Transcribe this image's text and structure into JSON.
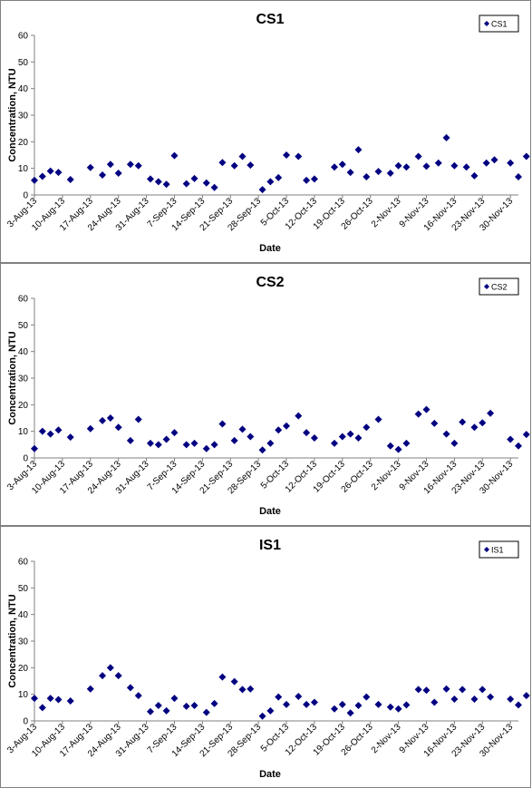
{
  "chart_data": [
    {
      "type": "scatter",
      "title": "CS1",
      "xlabel": "Date",
      "ylabel": "Concentration, NTU",
      "ylim": [
        0,
        60
      ],
      "yticks": [
        0,
        10,
        20,
        30,
        40,
        50,
        60
      ],
      "xticks": [
        "3-Aug-13",
        "10-Aug-13",
        "17-Aug-13",
        "24-Aug-13",
        "31-Aug-13",
        "7-Sep-13",
        "14-Sep-13",
        "21-Sep-13",
        "28-Sep-13",
        "5-Oct-13",
        "12-Oct-13",
        "19-Oct-13",
        "26-Oct-13",
        "2-Nov-13",
        "9-Nov-13",
        "16-Nov-13",
        "23-Nov-13",
        "30-Nov-13"
      ],
      "xlim": [
        "2013-08-03",
        "2013-12-02"
      ],
      "grid": false,
      "legend": "top-right",
      "marker_color": "#000080",
      "series": [
        {
          "name": "CS1",
          "points": [
            [
              "2013-08-03",
              5.5
            ],
            [
              "2013-08-05",
              7
            ],
            [
              "2013-08-07",
              9
            ],
            [
              "2013-08-09",
              8.5
            ],
            [
              "2013-08-12",
              5.8
            ],
            [
              "2013-08-17",
              10.3
            ],
            [
              "2013-08-20",
              7.5
            ],
            [
              "2013-08-22",
              11.5
            ],
            [
              "2013-08-24",
              8.2
            ],
            [
              "2013-08-27",
              11.5
            ],
            [
              "2013-08-29",
              11
            ],
            [
              "2013-09-01",
              6
            ],
            [
              "2013-09-03",
              5
            ],
            [
              "2013-09-05",
              4
            ],
            [
              "2013-09-07",
              14.8
            ],
            [
              "2013-09-10",
              4.2
            ],
            [
              "2013-09-12",
              6.2
            ],
            [
              "2013-09-15",
              4.5
            ],
            [
              "2013-09-17",
              2.8
            ],
            [
              "2013-09-19",
              12.2
            ],
            [
              "2013-09-22",
              11
            ],
            [
              "2013-09-24",
              14.5
            ],
            [
              "2013-09-26",
              11.2
            ],
            [
              "2013-09-29",
              2
            ],
            [
              "2013-10-01",
              5
            ],
            [
              "2013-10-03",
              6.5
            ],
            [
              "2013-10-05",
              15
            ],
            [
              "2013-10-08",
              14.5
            ],
            [
              "2013-10-10",
              5.5
            ],
            [
              "2013-10-12",
              6
            ],
            [
              "2013-10-17",
              10.5
            ],
            [
              "2013-10-19",
              11.5
            ],
            [
              "2013-10-21",
              8.5
            ],
            [
              "2013-10-23",
              17
            ],
            [
              "2013-10-25",
              6.8
            ],
            [
              "2013-10-28",
              8.8
            ],
            [
              "2013-10-31",
              8.2
            ],
            [
              "2013-11-02",
              11
            ],
            [
              "2013-11-04",
              10.5
            ],
            [
              "2013-11-07",
              14.5
            ],
            [
              "2013-11-09",
              10.8
            ],
            [
              "2013-11-12",
              12
            ],
            [
              "2013-11-14",
              21.5
            ],
            [
              "2013-11-16",
              11
            ],
            [
              "2013-11-19",
              10.5
            ],
            [
              "2013-11-21",
              7.2
            ],
            [
              "2013-11-24",
              12
            ],
            [
              "2013-11-26",
              13.2
            ],
            [
              "2013-11-30",
              12
            ],
            [
              "2013-12-02",
              6.8
            ],
            [
              "2013-12-04",
              14.5
            ]
          ]
        }
      ]
    },
    {
      "type": "scatter",
      "title": "CS2",
      "xlabel": "Date",
      "ylabel": "Concentration, NTU",
      "ylim": [
        0,
        60
      ],
      "yticks": [
        0,
        10,
        20,
        30,
        40,
        50,
        60
      ],
      "xticks": [
        "3-Aug-13",
        "10-Aug-13",
        "17-Aug-13",
        "24-Aug-13",
        "31-Aug-13",
        "7-Sep-13",
        "14-Sep-13",
        "21-Sep-13",
        "28-Sep-13",
        "5-Oct-13",
        "12-Oct-13",
        "19-Oct-13",
        "26-Oct-13",
        "2-Nov-13",
        "9-Nov-13",
        "16-Nov-13",
        "23-Nov-13",
        "30-Nov-13"
      ],
      "xlim": [
        "2013-08-03",
        "2013-12-02"
      ],
      "grid": false,
      "legend": "top-right",
      "marker_color": "#000080",
      "series": [
        {
          "name": "CS2",
          "points": [
            [
              "2013-08-03",
              3.5
            ],
            [
              "2013-08-05",
              10
            ],
            [
              "2013-08-07",
              9
            ],
            [
              "2013-08-09",
              10.5
            ],
            [
              "2013-08-12",
              7.8
            ],
            [
              "2013-08-17",
              11
            ],
            [
              "2013-08-20",
              14
            ],
            [
              "2013-08-22",
              15
            ],
            [
              "2013-08-24",
              11.5
            ],
            [
              "2013-08-27",
              6.5
            ],
            [
              "2013-08-29",
              14.5
            ],
            [
              "2013-09-01",
              5.5
            ],
            [
              "2013-09-03",
              5
            ],
            [
              "2013-09-05",
              7
            ],
            [
              "2013-09-07",
              9.5
            ],
            [
              "2013-09-10",
              5
            ],
            [
              "2013-09-12",
              5.5
            ],
            [
              "2013-09-15",
              3.5
            ],
            [
              "2013-09-17",
              5
            ],
            [
              "2013-09-19",
              12.8
            ],
            [
              "2013-09-22",
              6.5
            ],
            [
              "2013-09-24",
              10.8
            ],
            [
              "2013-09-26",
              8
            ],
            [
              "2013-09-29",
              3
            ],
            [
              "2013-10-01",
              5.5
            ],
            [
              "2013-10-03",
              10.5
            ],
            [
              "2013-10-05",
              12
            ],
            [
              "2013-10-08",
              15.8
            ],
            [
              "2013-10-10",
              9.5
            ],
            [
              "2013-10-12",
              7.5
            ],
            [
              "2013-10-17",
              5.5
            ],
            [
              "2013-10-19",
              8
            ],
            [
              "2013-10-21",
              9
            ],
            [
              "2013-10-23",
              7.5
            ],
            [
              "2013-10-25",
              11.5
            ],
            [
              "2013-10-28",
              14.5
            ],
            [
              "2013-10-31",
              4.5
            ],
            [
              "2013-11-02",
              3.2
            ],
            [
              "2013-11-04",
              5.5
            ],
            [
              "2013-11-07",
              16.5
            ],
            [
              "2013-11-09",
              18.2
            ],
            [
              "2013-11-11",
              13
            ],
            [
              "2013-11-14",
              9
            ],
            [
              "2013-11-16",
              5.5
            ],
            [
              "2013-11-18",
              13.5
            ],
            [
              "2013-11-21",
              11.5
            ],
            [
              "2013-11-23",
              13.2
            ],
            [
              "2013-11-25",
              16.8
            ],
            [
              "2013-11-30",
              7
            ],
            [
              "2013-12-02",
              4.5
            ],
            [
              "2013-12-04",
              8.8
            ]
          ]
        }
      ]
    },
    {
      "type": "scatter",
      "title": "IS1",
      "xlabel": "Date",
      "ylabel": "Concentration, NTU",
      "ylim": [
        0,
        60
      ],
      "yticks": [
        0,
        10,
        20,
        30,
        40,
        50,
        60
      ],
      "xticks": [
        "3-Aug-13",
        "10-Aug-13",
        "17-Aug-13",
        "24-Aug-13",
        "31-Aug-13",
        "7-Sep-13",
        "14-Sep-13",
        "21-Sep-13",
        "28-Sep-13",
        "5-Oct-13",
        "12-Oct-13",
        "19-Oct-13",
        "26-Oct-13",
        "2-Nov-13",
        "9-Nov-13",
        "16-Nov-13",
        "23-Nov-13",
        "30-Nov-13"
      ],
      "xlim": [
        "2013-08-03",
        "2013-12-02"
      ],
      "grid": false,
      "legend": "top-right",
      "marker_color": "#000080",
      "series": [
        {
          "name": "IS1",
          "points": [
            [
              "2013-08-03",
              8.5
            ],
            [
              "2013-08-05",
              5
            ],
            [
              "2013-08-07",
              8.5
            ],
            [
              "2013-08-09",
              8
            ],
            [
              "2013-08-12",
              7.5
            ],
            [
              "2013-08-17",
              12
            ],
            [
              "2013-08-20",
              17
            ],
            [
              "2013-08-22",
              20
            ],
            [
              "2013-08-24",
              17
            ],
            [
              "2013-08-27",
              12.5
            ],
            [
              "2013-08-29",
              9.5
            ],
            [
              "2013-09-01",
              3.5
            ],
            [
              "2013-09-03",
              5.8
            ],
            [
              "2013-09-05",
              3.8
            ],
            [
              "2013-09-07",
              8.5
            ],
            [
              "2013-09-10",
              5.5
            ],
            [
              "2013-09-12",
              5.8
            ],
            [
              "2013-09-15",
              3.2
            ],
            [
              "2013-09-17",
              6.5
            ],
            [
              "2013-09-19",
              16.5
            ],
            [
              "2013-09-22",
              14.8
            ],
            [
              "2013-09-24",
              11.8
            ],
            [
              "2013-09-26",
              12
            ],
            [
              "2013-09-29",
              1.8
            ],
            [
              "2013-10-01",
              3.8
            ],
            [
              "2013-10-03",
              9
            ],
            [
              "2013-10-05",
              6.2
            ],
            [
              "2013-10-08",
              9.2
            ],
            [
              "2013-10-10",
              6.2
            ],
            [
              "2013-10-12",
              7
            ],
            [
              "2013-10-17",
              4.5
            ],
            [
              "2013-10-19",
              6.2
            ],
            [
              "2013-10-21",
              3
            ],
            [
              "2013-10-23",
              5.8
            ],
            [
              "2013-10-25",
              9
            ],
            [
              "2013-10-28",
              6.2
            ],
            [
              "2013-10-31",
              5.2
            ],
            [
              "2013-11-02",
              4.5
            ],
            [
              "2013-11-04",
              6
            ],
            [
              "2013-11-07",
              11.8
            ],
            [
              "2013-11-09",
              11.5
            ],
            [
              "2013-11-11",
              7
            ],
            [
              "2013-11-14",
              12
            ],
            [
              "2013-11-16",
              8.2
            ],
            [
              "2013-11-18",
              11.8
            ],
            [
              "2013-11-21",
              8.2
            ],
            [
              "2013-11-23",
              11.8
            ],
            [
              "2013-11-25",
              9
            ],
            [
              "2013-11-30",
              8.2
            ],
            [
              "2013-12-02",
              6
            ],
            [
              "2013-12-04",
              9.5
            ]
          ]
        }
      ]
    }
  ]
}
